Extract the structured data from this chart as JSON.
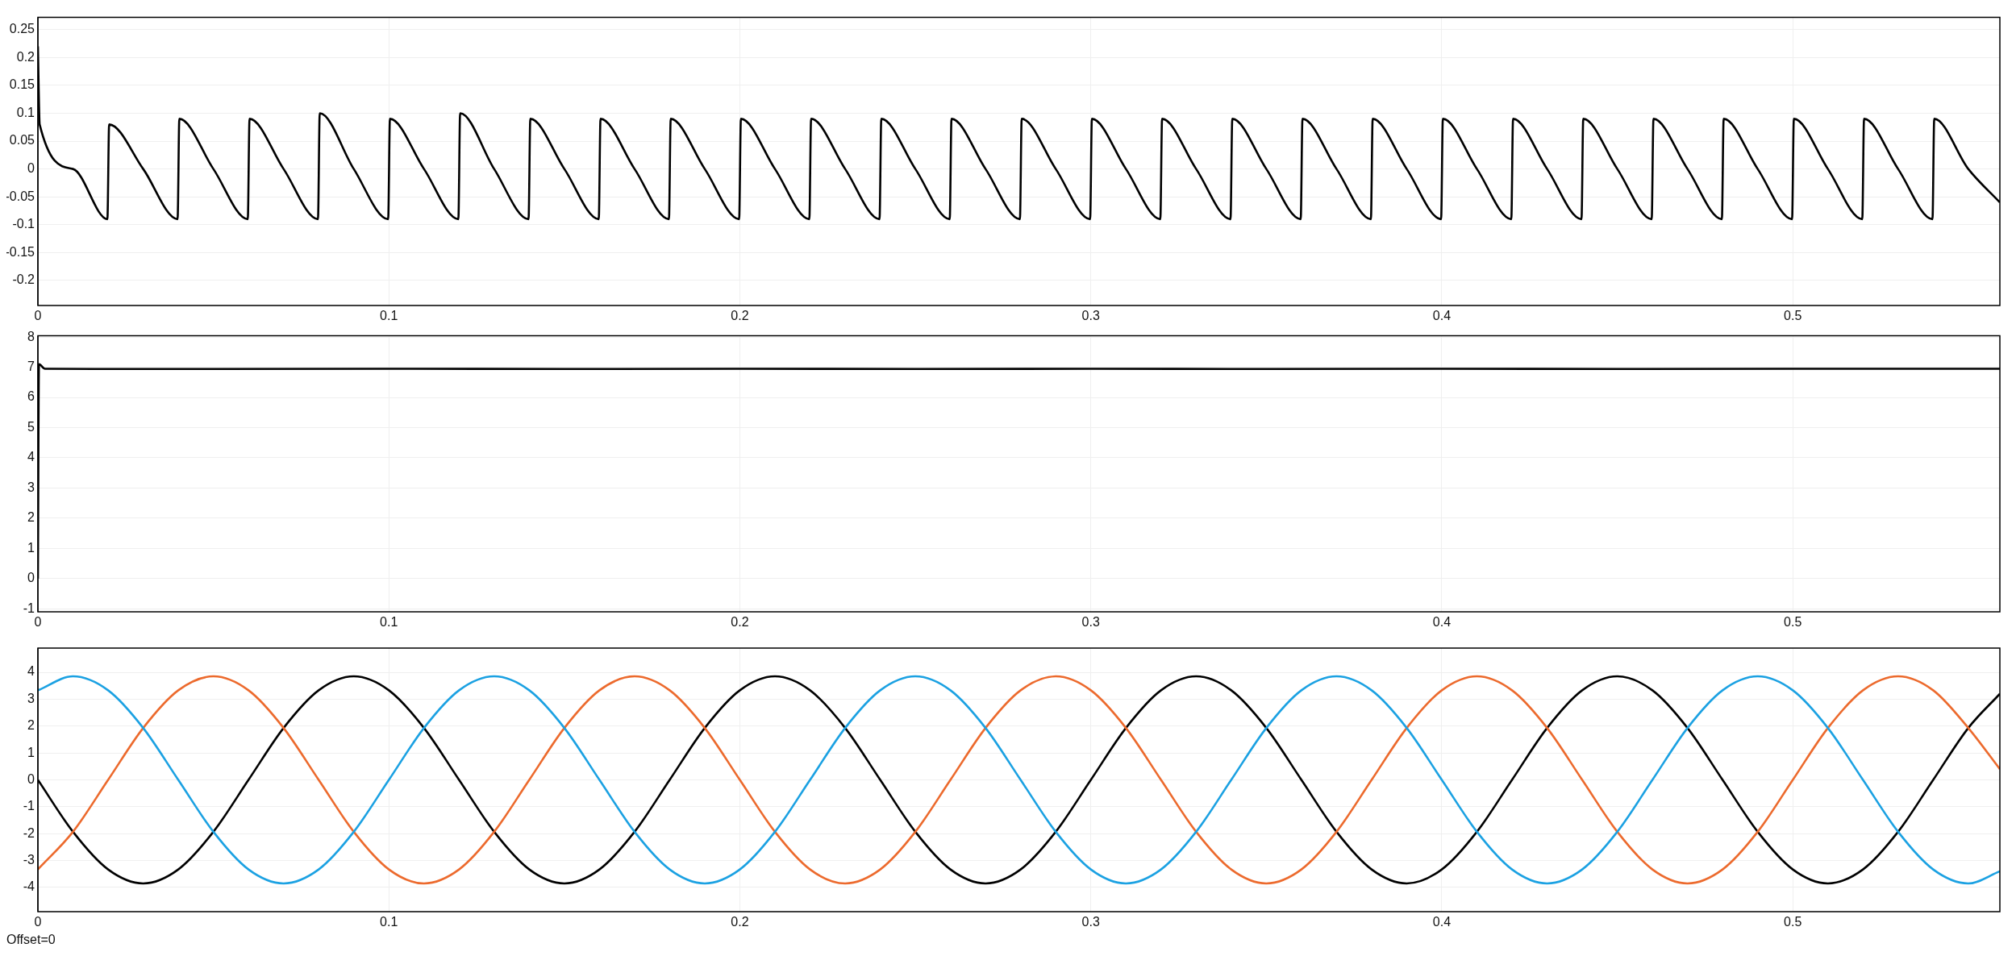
{
  "chart_data": [
    {
      "type": "line",
      "grid": true,
      "legend": false,
      "marker": "none",
      "line_style": "solid",
      "xlim": [
        0,
        0.559
      ],
      "ylim": [
        -0.245,
        0.272
      ],
      "xticks": [
        0,
        0.1,
        0.2,
        0.3,
        0.4,
        0.5
      ],
      "yticks": [
        -0.2,
        -0.15,
        -0.1,
        -0.05,
        0,
        0.05,
        0.1,
        0.15,
        0.2,
        0.25
      ],
      "x": [
        0,
        0.0005,
        0.01,
        0.0198,
        0.0203,
        0.03,
        0.0398,
        0.0403,
        0.05,
        0.0598,
        0.0603,
        0.07,
        0.0798,
        0.0803,
        0.09,
        0.0998,
        0.1003,
        0.11,
        0.1198,
        0.1203,
        0.13,
        0.1398,
        0.1403,
        0.15,
        0.1598,
        0.1603,
        0.17,
        0.1798,
        0.1803,
        0.19,
        0.1998,
        0.2003,
        0.21,
        0.2198,
        0.2203,
        0.23,
        0.2398,
        0.2403,
        0.25,
        0.2598,
        0.2603,
        0.27,
        0.2798,
        0.2803,
        0.29,
        0.2998,
        0.3003,
        0.31,
        0.3198,
        0.3203,
        0.33,
        0.3398,
        0.3403,
        0.35,
        0.3598,
        0.3603,
        0.37,
        0.3798,
        0.3803,
        0.39,
        0.3998,
        0.4003,
        0.41,
        0.4198,
        0.4203,
        0.43,
        0.4398,
        0.4403,
        0.45,
        0.4598,
        0.4603,
        0.47,
        0.4798,
        0.4803,
        0.49,
        0.4998,
        0.5003,
        0.51,
        0.5198,
        0.5203,
        0.53,
        0.5398,
        0.5403,
        0.55,
        0.559
      ],
      "series": [
        {
          "color": "#000000",
          "values": [
            0.22,
            0.08,
            0.0,
            -0.09,
            0.08,
            0.0,
            -0.09,
            0.09,
            0.0,
            -0.09,
            0.09,
            0.0,
            -0.09,
            0.1,
            0.0,
            -0.09,
            0.09,
            0.0,
            -0.09,
            0.1,
            0.0,
            -0.09,
            0.09,
            0.0,
            -0.09,
            0.09,
            0.0,
            -0.09,
            0.09,
            0.0,
            -0.09,
            0.09,
            0.0,
            -0.09,
            0.09,
            0.0,
            -0.09,
            0.09,
            0.0,
            -0.09,
            0.09,
            0.0,
            -0.09,
            0.09,
            0.0,
            -0.09,
            0.09,
            0.0,
            -0.09,
            0.09,
            0.0,
            -0.09,
            0.09,
            0.0,
            -0.09,
            0.09,
            0.0,
            -0.09,
            0.09,
            0.0,
            -0.09,
            0.09,
            0.0,
            -0.09,
            0.09,
            0.0,
            -0.09,
            0.09,
            0.0,
            -0.09,
            0.09,
            0.0,
            -0.09,
            0.09,
            0.0,
            -0.09,
            0.09,
            0.0,
            -0.09,
            0.09,
            0.0,
            -0.09,
            0.09,
            0.0,
            -0.06
          ]
        }
      ]
    },
    {
      "type": "line",
      "grid": true,
      "legend": false,
      "marker": "none",
      "line_style": "solid",
      "xlim": [
        0,
        0.559
      ],
      "ylim": [
        -1.1,
        8.04
      ],
      "xticks": [
        0,
        0.1,
        0.2,
        0.3,
        0.4,
        0.5
      ],
      "yticks": [
        -1,
        0,
        1,
        2,
        3,
        4,
        5,
        6,
        7,
        8
      ],
      "x": [
        0,
        0.0003,
        0.002,
        0.05,
        0.1,
        0.15,
        0.2,
        0.25,
        0.3,
        0.35,
        0.4,
        0.45,
        0.5,
        0.559
      ],
      "series": [
        {
          "color": "#000000",
          "values": [
            0,
            7.1,
            6.95,
            6.94,
            6.95,
            6.94,
            6.95,
            6.94,
            6.95,
            6.94,
            6.95,
            6.94,
            6.95,
            6.95
          ]
        }
      ]
    },
    {
      "type": "line",
      "grid": true,
      "legend": false,
      "marker": "none",
      "line_style": "solid",
      "xlim": [
        0,
        0.559
      ],
      "ylim": [
        -4.9,
        4.9
      ],
      "xticks": [
        0,
        0.1,
        0.2,
        0.3,
        0.4,
        0.5
      ],
      "yticks": [
        -4,
        -3,
        -2,
        -1,
        0,
        1,
        2,
        3,
        4
      ],
      "annotations": [
        "Offset=0"
      ],
      "x": [
        0,
        0.01,
        0.02,
        0.03,
        0.04,
        0.05,
        0.06,
        0.07,
        0.08,
        0.09,
        0.1,
        0.11,
        0.12,
        0.13,
        0.14,
        0.15,
        0.16,
        0.17,
        0.18,
        0.19,
        0.2,
        0.21,
        0.22,
        0.23,
        0.24,
        0.25,
        0.26,
        0.27,
        0.28,
        0.29,
        0.3,
        0.31,
        0.32,
        0.33,
        0.34,
        0.35,
        0.36,
        0.37,
        0.38,
        0.39,
        0.4,
        0.41,
        0.42,
        0.43,
        0.44,
        0.45,
        0.46,
        0.47,
        0.48,
        0.49,
        0.5,
        0.51,
        0.52,
        0.53,
        0.54,
        0.55,
        0.559
      ],
      "series": [
        {
          "color": "#1ba1e2",
          "values": [
            3.33,
            3.85,
            3.33,
            1.93,
            0,
            -1.93,
            -3.33,
            -3.85,
            -3.33,
            -1.93,
            0,
            1.93,
            3.33,
            3.85,
            3.33,
            1.93,
            0,
            -1.93,
            -3.33,
            -3.85,
            -3.33,
            -1.93,
            0,
            1.93,
            3.33,
            3.85,
            3.33,
            1.93,
            0,
            -1.93,
            -3.33,
            -3.85,
            -3.33,
            -1.93,
            0,
            1.93,
            3.33,
            3.85,
            3.33,
            1.93,
            0,
            -1.93,
            -3.33,
            -3.85,
            -3.33,
            -1.93,
            0,
            1.93,
            3.33,
            3.85,
            3.33,
            1.93,
            0,
            -1.93,
            -3.33,
            -3.85,
            -3.4
          ]
        },
        {
          "color": "#ec6a2d",
          "values": [
            -3.33,
            -1.93,
            0,
            1.93,
            3.33,
            3.85,
            3.33,
            1.93,
            0,
            -1.93,
            -3.33,
            -3.85,
            -3.33,
            -1.93,
            0,
            1.93,
            3.33,
            3.85,
            3.33,
            1.93,
            0,
            -1.93,
            -3.33,
            -3.85,
            -3.33,
            -1.93,
            0,
            1.93,
            3.33,
            3.85,
            3.33,
            1.93,
            0,
            -1.93,
            -3.33,
            -3.85,
            -3.33,
            -1.93,
            0,
            1.93,
            3.33,
            3.85,
            3.33,
            1.93,
            0,
            -1.93,
            -3.33,
            -3.85,
            -3.33,
            -1.93,
            0,
            1.93,
            3.33,
            3.85,
            3.33,
            1.93,
            0.4
          ]
        },
        {
          "color": "#000000",
          "values": [
            0,
            -1.93,
            -3.33,
            -3.85,
            -3.33,
            -1.93,
            0,
            1.93,
            3.33,
            3.85,
            3.33,
            1.93,
            0,
            -1.93,
            -3.33,
            -3.85,
            -3.33,
            -1.93,
            0,
            1.93,
            3.33,
            3.85,
            3.33,
            1.93,
            0,
            -1.93,
            -3.33,
            -3.85,
            -3.33,
            -1.93,
            0,
            1.93,
            3.33,
            3.85,
            3.33,
            1.93,
            0,
            -1.93,
            -3.33,
            -3.85,
            -3.33,
            -1.93,
            0,
            1.93,
            3.33,
            3.85,
            3.33,
            1.93,
            0,
            -1.93,
            -3.33,
            -3.85,
            -3.33,
            -1.93,
            0,
            1.93,
            3.2
          ]
        }
      ]
    }
  ]
}
